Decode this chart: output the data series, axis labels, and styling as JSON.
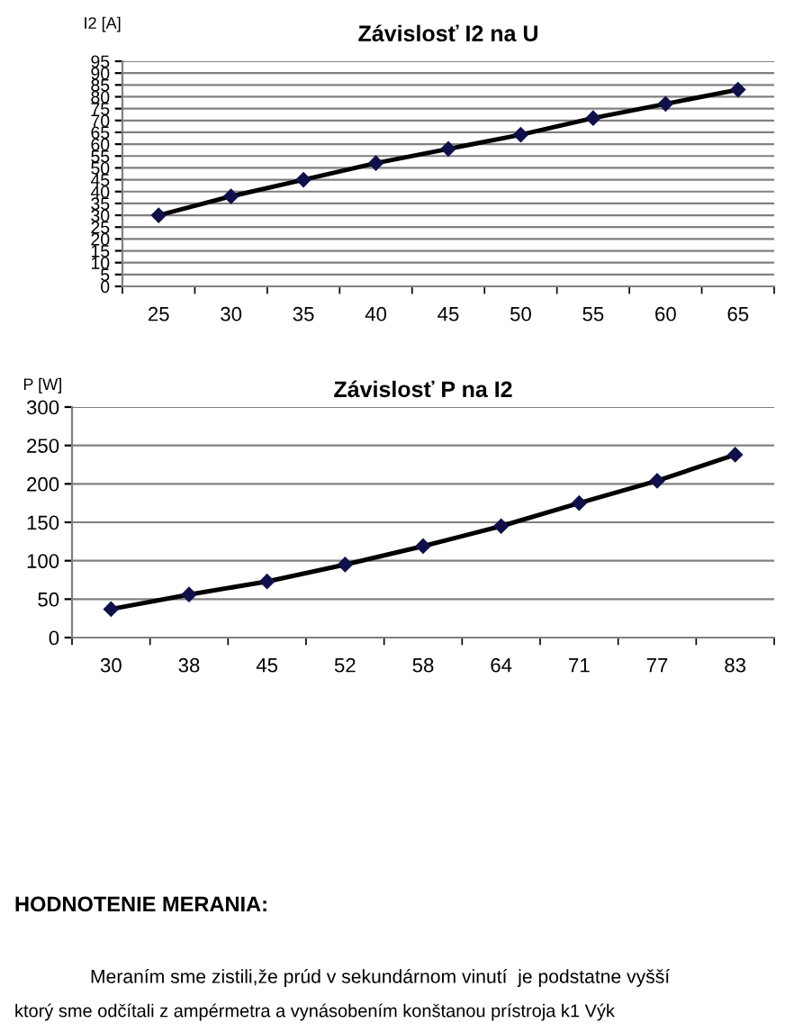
{
  "chart_data": [
    {
      "type": "line",
      "title": "Závislosť I2 na U",
      "ylabel": "I2 [A]",
      "categories": [
        "25",
        "30",
        "35",
        "40",
        "45",
        "50",
        "55",
        "60",
        "65"
      ],
      "series": [
        {
          "color": "#000000",
          "values": [
            30,
            38,
            45,
            52,
            58,
            64,
            71,
            77,
            83
          ]
        }
      ],
      "ylim": [
        0,
        95
      ],
      "yticks": [
        0,
        5,
        10,
        15,
        20,
        25,
        30,
        35,
        40,
        45,
        50,
        55,
        60,
        65,
        70,
        75,
        80,
        85,
        90,
        95
      ],
      "grid": "y",
      "marker": "diamond",
      "line_style": "solid"
    },
    {
      "type": "line",
      "title": "Závislosť P na I2",
      "ylabel": "P [W]",
      "categories": [
        "30",
        "38",
        "45",
        "52",
        "58",
        "64",
        "71",
        "77",
        "83"
      ],
      "series": [
        {
          "color": "#000000",
          "values": [
            37,
            56,
            73,
            95,
            119,
            145,
            175,
            204,
            238
          ]
        }
      ],
      "ylim": [
        0,
        300
      ],
      "yticks": [
        0,
        50,
        100,
        150,
        200,
        250,
        300
      ],
      "grid": "y",
      "marker": "diamond",
      "line_style": "solid"
    },
    {
      "type": "other",
      "title": "HODNOTENIE MERANIA:",
      "annotations": [
        "Meraním sme zistili,že prúd v sekundárnom vinutí  je podstatne vyšší",
        "ktorý sme odčítali z ampérmetra a vynásobením konštanou prístroja k1 Výk"
      ]
    }
  ]
}
